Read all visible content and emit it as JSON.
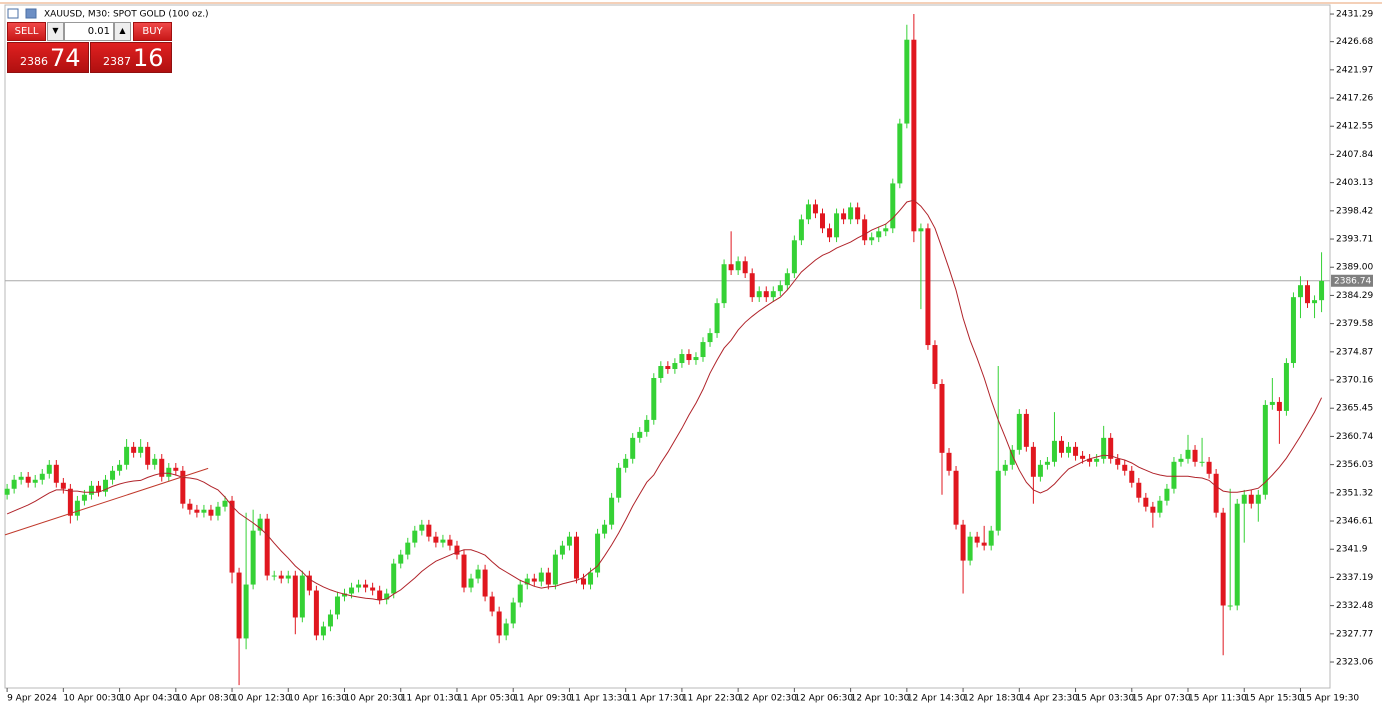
{
  "chart_data": {
    "type": "candlestick",
    "title": "XAUUSD, M30:  SPOT GOLD (100 oz.)",
    "open": [
      2351,
      2352,
      2353.5,
      2354,
      2353,
      2353.5,
      2354.5,
      2356,
      2353,
      2352,
      2347.5,
      2350,
      2351,
      2352.5,
      2351.5,
      2353.5,
      2355,
      2356,
      2359,
      2358,
      2359,
      2356,
      2357,
      2354,
      2355.5,
      2355,
      2349.5,
      2348.5,
      2348,
      2348.5,
      2347.5,
      2349,
      2350,
      2338,
      2327,
      2336,
      2345,
      2347,
      2337.5,
      2337.5,
      2337,
      2337.5,
      2330.5,
      2337.5,
      2335,
      2327.5,
      2329,
      2331,
      2334,
      2334.5,
      2335.5,
      2336,
      2335.5,
      2335,
      2333.5,
      2334.5,
      2339.5,
      2341,
      2343,
      2345,
      2346,
      2344,
      2343,
      2343.5,
      2342.5,
      2341,
      2335.5,
      2337,
      2338.5,
      2334,
      2331.5,
      2327.5,
      2329.5,
      2333,
      2336,
      2337,
      2336.5,
      2338,
      2336,
      2341,
      2342.5,
      2344,
      2337,
      2336,
      2338,
      2344.5,
      2346,
      2350.5,
      2355.5,
      2357,
      2360.5,
      2361.5,
      2363.5,
      2370.5,
      2372.5,
      2372,
      2373,
      2374.5,
      2373.5,
      2374,
      2376.5,
      2378,
      2383,
      2389.5,
      2388.5,
      2390,
      2388,
      2384,
      2385,
      2384,
      2385,
      2386,
      2388,
      2393.5,
      2397,
      2399.5,
      2398,
      2395.5,
      2394,
      2398,
      2397,
      2399,
      2397,
      2393.5,
      2394,
      2395,
      2395.5,
      2403,
      2413,
      2427,
      2395,
      2395.5,
      2376,
      2369.5,
      2358,
      2355,
      2346,
      2340,
      2344,
      2343,
      2342.5,
      2345,
      2355,
      2356,
      2358.5,
      2364.5,
      2359,
      2354,
      2356,
      2356.5,
      2360,
      2358,
      2359,
      2357.5,
      2357,
      2356.5,
      2357,
      2360.5,
      2357,
      2356,
      2355,
      2353,
      2350.5,
      2349,
      2348,
      2350,
      2352,
      2356.5,
      2357,
      2358.5,
      2356.5,
      2356.5,
      2354.5,
      2348,
      2332.5,
      2332.5,
      2349.5,
      2351,
      2349.5,
      2351,
      2366,
      2366.5,
      2365,
      2373,
      2384,
      2386,
      2383,
      2383.5
    ],
    "high": [
      2352.8,
      2354.3,
      2354.8,
      2354.8,
      2354.3,
      2355.3,
      2356.8,
      2356.8,
      2353.8,
      2352.8,
      2350.8,
      2351.8,
      2353.3,
      2353.3,
      2354.3,
      2355.8,
      2356.8,
      2360.3,
      2359.8,
      2360.3,
      2359.8,
      2357.8,
      2357.8,
      2356.3,
      2356.3,
      2355.8,
      2350.3,
      2349.3,
      2349.3,
      2349.3,
      2349.8,
      2350.8,
      2350.8,
      2338.8,
      2348,
      2348.5,
      2347.8,
      2347.8,
      2338.3,
      2338.3,
      2338.3,
      2338.3,
      2338.3,
      2338.3,
      2335.8,
      2329.8,
      2331.8,
      2334.8,
      2335.3,
      2336.3,
      2336.8,
      2336.8,
      2336.3,
      2335.8,
      2335.3,
      2340.3,
      2341.8,
      2343.8,
      2345.8,
      2346.8,
      2346.8,
      2344.8,
      2344.3,
      2344.3,
      2343.3,
      2341.8,
      2337.8,
      2339.3,
      2339.3,
      2334.8,
      2332.3,
      2330.3,
      2333.8,
      2336.8,
      2337.8,
      2337.8,
      2338.8,
      2338.8,
      2341.8,
      2343.3,
      2344.8,
      2344.8,
      2337.8,
      2338.8,
      2345.3,
      2346.8,
      2351.3,
      2356.3,
      2357.8,
      2361.3,
      2362.3,
      2364.3,
      2371.3,
      2373.3,
      2373.3,
      2373.8,
      2375.3,
      2375.3,
      2374.8,
      2377.3,
      2378.8,
      2383.8,
      2390.3,
      2395,
      2390.8,
      2390.8,
      2388.8,
      2385.8,
      2385.8,
      2385.8,
      2386.8,
      2388.8,
      2394.3,
      2397.8,
      2400.3,
      2400.3,
      2398.8,
      2396.3,
      2398.8,
      2398.8,
      2399.8,
      2399.8,
      2397.8,
      2394.8,
      2395.8,
      2396.3,
      2403.8,
      2413.8,
      2429.5,
      2431.3,
      2396.3,
      2396.3,
      2376.8,
      2370.3,
      2358.8,
      2355.8,
      2346.8,
      2344.8,
      2344.8,
      2345.8,
      2345.8,
      2372.5,
      2356.8,
      2359.3,
      2365.3,
      2365.3,
      2359.8,
      2356.8,
      2357.3,
      2364.8,
      2360.8,
      2359.8,
      2359.8,
      2358.3,
      2357.8,
      2357.8,
      2362.5,
      2361.3,
      2357.8,
      2356.8,
      2355.8,
      2353.8,
      2351.3,
      2349.8,
      2350.8,
      2352.8,
      2357.3,
      2357.8,
      2361,
      2359.3,
      2360.5,
      2357.3,
      2355.3,
      2348.8,
      2352,
      2350.3,
      2351.8,
      2351.8,
      2351.8,
      2366.8,
      2370.5,
      2367.3,
      2373.8,
      2384.8,
      2387.5,
      2386.8,
      2384.3,
      2391.5
    ],
    "low": [
      2350.2,
      2351.2,
      2352.7,
      2352.2,
      2352.2,
      2352.7,
      2353.7,
      2352.2,
      2351.2,
      2346.2,
      2346.7,
      2349.2,
      2350.2,
      2350.7,
      2350.7,
      2352.7,
      2354.2,
      2355.2,
      2357.2,
      2357.2,
      2355.2,
      2355.2,
      2353.2,
      2353.2,
      2354.2,
      2348.7,
      2347.7,
      2347.2,
      2347.2,
      2346.7,
      2346.7,
      2348.2,
      2336.2,
      2319.2,
      2325.2,
      2335.2,
      2344.2,
      2336.7,
      2336.7,
      2336.2,
      2336.2,
      2327.7,
      2329.7,
      2334.2,
      2326.7,
      2326.7,
      2328.2,
      2330.2,
      2333.2,
      2333.7,
      2334.7,
      2334.7,
      2334.2,
      2332.7,
      2332.7,
      2333.7,
      2338.7,
      2340.2,
      2342.2,
      2344.2,
      2343.2,
      2342.2,
      2342.2,
      2341.7,
      2340.2,
      2334.7,
      2334.7,
      2336.2,
      2333.2,
      2330.7,
      2326.2,
      2326.7,
      2328.7,
      2332.2,
      2335.2,
      2335.7,
      2335.7,
      2335.2,
      2335.2,
      2340.2,
      2341.7,
      2336.2,
      2335.2,
      2335.2,
      2337.2,
      2343.7,
      2345.2,
      2349.7,
      2354.7,
      2356.2,
      2359.7,
      2360.7,
      2362.7,
      2369.7,
      2371.2,
      2371.2,
      2372.2,
      2372.7,
      2372.7,
      2373.2,
      2375.7,
      2377.2,
      2382.2,
      2387.7,
      2387.7,
      2387.2,
      2383.2,
      2383.2,
      2383.2,
      2383.2,
      2384.2,
      2385.2,
      2387.2,
      2392.7,
      2396.2,
      2397.2,
      2394.7,
      2393.2,
      2393.2,
      2396.2,
      2396.2,
      2396.2,
      2392.7,
      2392.7,
      2393.2,
      2394.2,
      2394.7,
      2402.2,
      2412.2,
      2393.2,
      2382,
      2375.2,
      2368.7,
      2351,
      2354.2,
      2345.2,
      2334.5,
      2339.2,
      2342.2,
      2341.7,
      2341.7,
      2344.2,
      2354.2,
      2355.2,
      2357.7,
      2358.2,
      2349.5,
      2353.2,
      2355.2,
      2355.7,
      2357.2,
      2357.2,
      2356.7,
      2356.2,
      2355.7,
      2355.7,
      2356.2,
      2356.2,
      2355.2,
      2354.2,
      2352.2,
      2349.7,
      2348.2,
      2345.5,
      2347.2,
      2349.2,
      2351.2,
      2355.7,
      2356.2,
      2355.7,
      2355.7,
      2353.7,
      2347.2,
      2324.2,
      2331.7,
      2331.7,
      2343,
      2348.7,
      2346.5,
      2350.2,
      2365.2,
      2359.5,
      2364.2,
      2372.2,
      2380.5,
      2382.2,
      2380.5,
      2381.5
    ],
    "close": [
      2352,
      2353.5,
      2354,
      2353,
      2353.5,
      2354.5,
      2356,
      2353,
      2352,
      2347.5,
      2350,
      2351,
      2352.5,
      2351.5,
      2353.5,
      2355,
      2356,
      2359,
      2358,
      2359,
      2356,
      2357,
      2354,
      2355.5,
      2355,
      2349.5,
      2348.5,
      2348,
      2348.5,
      2347.5,
      2349,
      2350,
      2338,
      2327,
      2336,
      2345,
      2347,
      2337.5,
      2337.5,
      2337,
      2337.5,
      2330.5,
      2337.5,
      2335,
      2327.5,
      2329,
      2331,
      2334,
      2334.5,
      2335.5,
      2336,
      2335.5,
      2335,
      2333.5,
      2334.5,
      2339.5,
      2341,
      2343,
      2345,
      2346,
      2344,
      2343,
      2343.5,
      2342.5,
      2341,
      2335.5,
      2337,
      2338.5,
      2334,
      2331.5,
      2327.5,
      2329.5,
      2333,
      2336,
      2337,
      2336.5,
      2338,
      2336,
      2341,
      2342.5,
      2344,
      2337,
      2336,
      2338,
      2344.5,
      2346,
      2350.5,
      2355.5,
      2357,
      2360.5,
      2361.5,
      2363.5,
      2370.5,
      2372.5,
      2372,
      2373,
      2374.5,
      2373.5,
      2374,
      2376.5,
      2378,
      2383,
      2389.5,
      2388.5,
      2390,
      2388,
      2384,
      2385,
      2384,
      2385,
      2386,
      2388,
      2393.5,
      2397,
      2399.5,
      2398,
      2395.5,
      2394,
      2398,
      2397,
      2399,
      2397,
      2393.5,
      2394,
      2395,
      2395.5,
      2403,
      2413,
      2427,
      2395,
      2395.5,
      2376,
      2369.5,
      2358,
      2355,
      2346,
      2340,
      2344,
      2343,
      2342.5,
      2345,
      2355,
      2356,
      2358.5,
      2364.5,
      2359,
      2354,
      2356,
      2356.5,
      2360,
      2358,
      2359,
      2357.5,
      2357,
      2356.5,
      2357,
      2360.5,
      2357,
      2356,
      2355,
      2353,
      2350.5,
      2349,
      2348,
      2350,
      2352,
      2356.5,
      2357,
      2358.5,
      2356.5,
      2356.5,
      2354.5,
      2348,
      2332.5,
      2332.5,
      2349.5,
      2351,
      2349.5,
      2351,
      2366,
      2366.5,
      2365,
      2373,
      2384,
      2386,
      2383,
      2383.5,
      2386.7
    ],
    "up_color": "#35d135",
    "down_color": "#e0171f",
    "ma": {
      "color": "#b0232a",
      "values": [
        2347.8,
        2348.3,
        2348.8,
        2349.3,
        2349.9,
        2350.6,
        2351.3,
        2351.8,
        2351.8,
        2351.6,
        2351.6,
        2351.4,
        2351.4,
        2351.4,
        2351.9,
        2352.4,
        2352.8,
        2353.1,
        2353.3,
        2353.4,
        2353.9,
        2354.3,
        2354.6,
        2354.6,
        2354.3,
        2353.9,
        2353.8,
        2353.6,
        2353.1,
        2352.4,
        2351.8,
        2350.6,
        2349.1,
        2347.9,
        2347.1,
        2346.3,
        2345.4,
        2344.3,
        2342.9,
        2341.6,
        2340.4,
        2339.1,
        2338.1,
        2336.9,
        2336.2,
        2335.6,
        2335.1,
        2334.7,
        2334.4,
        2334.1,
        2333.9,
        2333.7,
        2333.6,
        2333.4,
        2333.6,
        2334.4,
        2335.1,
        2336.1,
        2337.1,
        2338.2,
        2339.1,
        2339.9,
        2340.4,
        2340.9,
        2341.4,
        2341.8,
        2341.8,
        2341.4,
        2340.9,
        2339.8,
        2338.8,
        2338.1,
        2337.4,
        2336.7,
        2336.2,
        2335.7,
        2335.4,
        2335.6,
        2335.7,
        2336.1,
        2336.4,
        2336.7,
        2337.2,
        2338.2,
        2339.1,
        2340.8,
        2342.6,
        2344.6,
        2346.8,
        2349.1,
        2351.1,
        2353.1,
        2354.3,
        2356.3,
        2358.1,
        2360.1,
        2362.1,
        2364.3,
        2366.3,
        2368.6,
        2371.3,
        2373.5,
        2375.5,
        2376.8,
        2378.5,
        2379.8,
        2380.8,
        2381.7,
        2382.5,
        2383.3,
        2384.0,
        2385.2,
        2386.7,
        2388.2,
        2389.2,
        2390.2,
        2391.0,
        2391.5,
        2392.2,
        2392.7,
        2393.2,
        2393.9,
        2394.5,
        2395.2,
        2395.7,
        2396.2,
        2397.2,
        2398.5,
        2399.9,
        2400.2,
        2399.2,
        2397.7,
        2395.5,
        2392.2,
        2388.8,
        2385.2,
        2380.5,
        2376.8,
        2373.8,
        2370.5,
        2366.8,
        2363.5,
        2360.6,
        2357.6,
        2355.1,
        2353.1,
        2351.8,
        2351.3,
        2351.8,
        2352.8,
        2354.1,
        2355.3,
        2355.9,
        2356.5,
        2357.0,
        2357.3,
        2357.6,
        2357.5,
        2357.1,
        2356.8,
        2356.3,
        2355.6,
        2355.1,
        2354.6,
        2354.3,
        2354.1,
        2354.1,
        2354.1,
        2354.1,
        2353.9,
        2353.8,
        2353.4,
        2352.4,
        2351.6,
        2351.4,
        2351.4,
        2351.6,
        2351.8,
        2352.1,
        2353.1,
        2354.3,
        2355.6,
        2357.1,
        2358.9,
        2360.8,
        2362.8,
        2364.8,
        2367.2
      ]
    },
    "trendline": {
      "color": "#c0392b",
      "x": [
        -0.3,
        28.6
      ],
      "values": [
        2344.3,
        2355.4
      ]
    },
    "current_price": 2386.74,
    "xlim": [
      -0.3,
      188.2
    ],
    "xticks": [
      {
        "value": 0,
        "label": "9 Apr 2024"
      },
      {
        "value": 8,
        "label": "10 Apr 00:30"
      },
      {
        "value": 16,
        "label": "10 Apr 04:30"
      },
      {
        "value": 24,
        "label": "10 Apr 08:30"
      },
      {
        "value": 32,
        "label": "10 Apr 12:30"
      },
      {
        "value": 40,
        "label": "10 Apr 16:30"
      },
      {
        "value": 48,
        "label": "10 Apr 20:30"
      },
      {
        "value": 56,
        "label": "11 Apr 01:30"
      },
      {
        "value": 64,
        "label": "11 Apr 05:30"
      },
      {
        "value": 72,
        "label": "11 Apr 09:30"
      },
      {
        "value": 80,
        "label": "11 Apr 13:30"
      },
      {
        "value": 88,
        "label": "11 Apr 17:30"
      },
      {
        "value": 96,
        "label": "11 Apr 22:30"
      },
      {
        "value": 104,
        "label": "12 Apr 02:30"
      },
      {
        "value": 112,
        "label": "12 Apr 06:30"
      },
      {
        "value": 120,
        "label": "12 Apr 10:30"
      },
      {
        "value": 128,
        "label": "12 Apr 14:30"
      },
      {
        "value": 136,
        "label": "12 Apr 18:30"
      },
      {
        "value": 144,
        "label": "14 Apr 23:30"
      },
      {
        "value": 152,
        "label": "15 Apr 03:30"
      },
      {
        "value": 160,
        "label": "15 Apr 07:30"
      },
      {
        "value": 168,
        "label": "15 Apr 11:30"
      },
      {
        "value": 176,
        "label": "15 Apr 15:30"
      },
      {
        "value": 184,
        "label": "15 Apr 19:30"
      }
    ],
    "ylim": [
      2318.72,
      2432.8
    ],
    "yticks": [
      2431.29,
      2426.68,
      2421.97,
      2417.26,
      2412.55,
      2407.84,
      2403.13,
      2398.42,
      2393.71,
      {
        "value": 2389,
        "label": "2389.00"
      },
      2384.29,
      2379.58,
      2374.87,
      2370.16,
      2365.45,
      2360.74,
      2356.03,
      2351.32,
      2346.61,
      2341.9,
      2337.19,
      2332.48,
      2327.77,
      2323.06
    ],
    "grid": false
  },
  "trade_panel": {
    "sell_label": "SELL",
    "buy_label": "BUY",
    "lot": "0.01",
    "sell_big": "2386",
    "sell_pips": "74",
    "buy_big": "2387",
    "buy_pips": "16"
  }
}
